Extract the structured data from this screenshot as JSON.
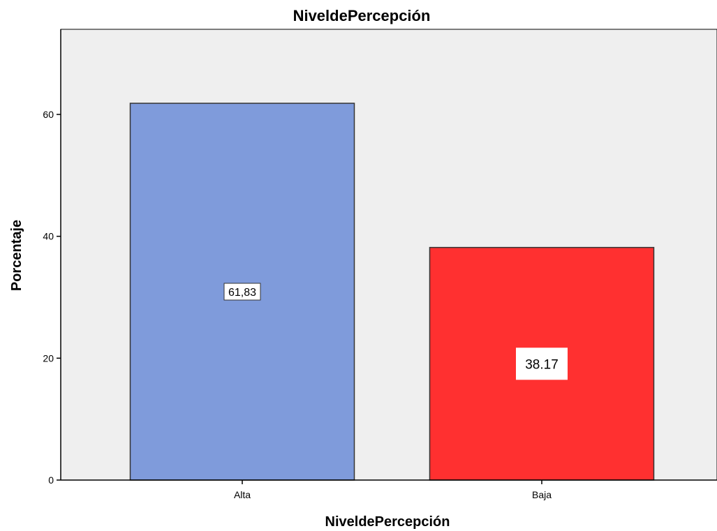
{
  "chart_data": {
    "type": "bar",
    "title": "NiveldePercepción",
    "xlabel": "NiveldePercepción",
    "ylabel": "Porcentaje",
    "categories": [
      "Alta",
      "Baja"
    ],
    "values": [
      61.83,
      38.17
    ],
    "data_labels": [
      "61,83",
      "38.17"
    ],
    "colors": [
      "#7f9bdb",
      "#ff3030"
    ],
    "ylim": [
      0,
      73
    ],
    "yticks": [
      0,
      20,
      40,
      60
    ],
    "plot_background": "#efefef",
    "grid": false,
    "legend": "none"
  }
}
